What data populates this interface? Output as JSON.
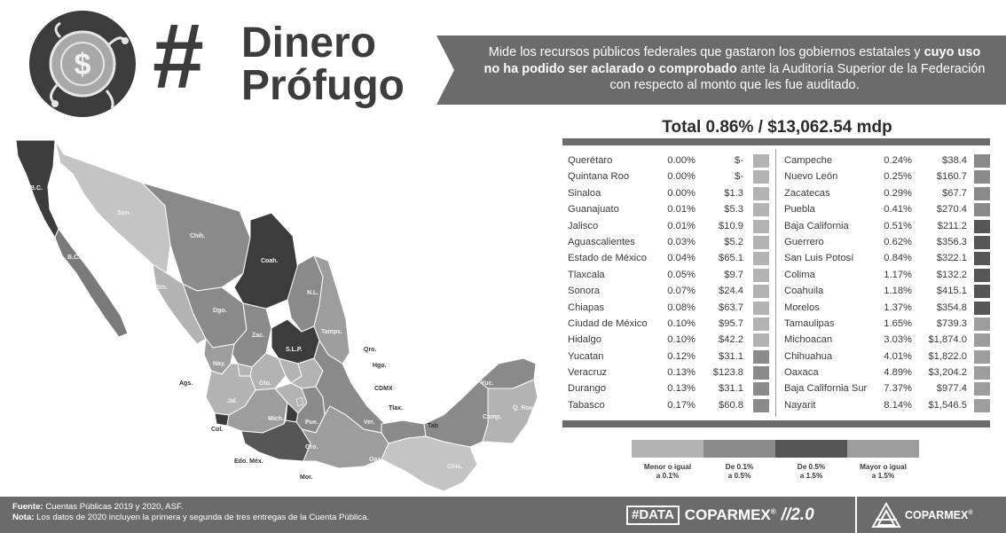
{
  "header": {
    "hashtag": "#",
    "title_line1": "Dinero",
    "title_line2": "Prófugo",
    "description_part1": "Mide los recursos públicos federales que gastaron los gobiernos estatales y ",
    "description_bold": "cuyo uso no ha podido ser aclarado o comprobado",
    "description_part2": " ante la Auditoría Superior de la Federación con respecto al monto que les fue auditado."
  },
  "total": {
    "text": "Total 0.86% /  $13,062.54 mdp"
  },
  "colors": {
    "dark": "#3c3c3c",
    "banner": "#6b6b6b",
    "tier1": "#b3b3b3",
    "tier2": "#8a8a8a",
    "tier3": "#565656",
    "tier4": "#9d9d9d"
  },
  "table": {
    "left": [
      {
        "state": "Querétaro",
        "pct": "0.00%",
        "amount": "$-",
        "tier": 1
      },
      {
        "state": "Quintana Roo",
        "pct": "0.00%",
        "amount": "$-",
        "tier": 1
      },
      {
        "state": "Sinaloa",
        "pct": "0.00%",
        "amount": "$1.3",
        "tier": 1
      },
      {
        "state": "Guanajuato",
        "pct": "0.01%",
        "amount": "$5.3",
        "tier": 1
      },
      {
        "state": "Jalisco",
        "pct": "0.01%",
        "amount": "$10.9",
        "tier": 1
      },
      {
        "state": "Aguascalientes",
        "pct": "0.03%",
        "amount": "$5.2",
        "tier": 1
      },
      {
        "state": "Estado de México",
        "pct": "0.04%",
        "amount": "$65.1",
        "tier": 1
      },
      {
        "state": "Tlaxcala",
        "pct": "0.05%",
        "amount": "$9.7",
        "tier": 1
      },
      {
        "state": "Sonora",
        "pct": "0.07%",
        "amount": "$24.4",
        "tier": 1
      },
      {
        "state": "Chiapas",
        "pct": "0.08%",
        "amount": "$63.7",
        "tier": 1
      },
      {
        "state": "Ciudad de México",
        "pct": "0.10%",
        "amount": "$95.7",
        "tier": 1
      },
      {
        "state": "Hidalgo",
        "pct": "0.10%",
        "amount": "$42.2",
        "tier": 1
      },
      {
        "state": "Yucatan",
        "pct": "0.12%",
        "amount": "$31.1",
        "tier": 2
      },
      {
        "state": "Veracruz",
        "pct": "0.13%",
        "amount": "$123.8",
        "tier": 2
      },
      {
        "state": "Durango",
        "pct": "0.13%",
        "amount": "$31.1",
        "tier": 2
      },
      {
        "state": "Tabasco",
        "pct": "0.17%",
        "amount": "$60.8",
        "tier": 2
      }
    ],
    "right": [
      {
        "state": "Campeche",
        "pct": "0.24%",
        "amount": "$38.4",
        "tier": 2
      },
      {
        "state": "Nuevo León",
        "pct": "0.25%",
        "amount": "$160.7",
        "tier": 2
      },
      {
        "state": "Zacatecas",
        "pct": "0.29%",
        "amount": "$67.7",
        "tier": 2
      },
      {
        "state": "Puebla",
        "pct": "0.41%",
        "amount": "$270.4",
        "tier": 2
      },
      {
        "state": "Baja California",
        "pct": "0.51%",
        "amount": "$211.2",
        "tier": 3
      },
      {
        "state": "Guerrero",
        "pct": "0.62%",
        "amount": "$356.3",
        "tier": 3
      },
      {
        "state": "San Luis Potosí",
        "pct": "0.84%",
        "amount": "$322.1",
        "tier": 3
      },
      {
        "state": "Colima",
        "pct": "1.17%",
        "amount": "$132.2",
        "tier": 3
      },
      {
        "state": "Coahuila",
        "pct": "1.18%",
        "amount": "$415.1",
        "tier": 3
      },
      {
        "state": "Morelos",
        "pct": "1.37%",
        "amount": "$354.8",
        "tier": 3
      },
      {
        "state": "Tamaulipas",
        "pct": "1.65%",
        "amount": "$739.3",
        "tier": 4
      },
      {
        "state": "Michoacan",
        "pct": "3.03%",
        "amount": "$1,874.0",
        "tier": 4
      },
      {
        "state": "Chihuahua",
        "pct": "4.01%",
        "amount": "$1,822.0",
        "tier": 4
      },
      {
        "state": "Oaxaca",
        "pct": "4.89%",
        "amount": "$3,204.2",
        "tier": 4
      },
      {
        "state": "Baja California Sur",
        "pct": "7.37%",
        "amount": "$977.4",
        "tier": 4
      },
      {
        "state": "Nayarit",
        "pct": "8.14%",
        "amount": "$1,546.5",
        "tier": 4
      }
    ]
  },
  "legend": [
    {
      "label_line1": "Menor o igual",
      "label_line2": "a 0.1%"
    },
    {
      "label_line1": "De 0.1%",
      "label_line2": "a 0.5%"
    },
    {
      "label_line1": "De 0.5%",
      "label_line2": "a 1.5%"
    },
    {
      "label_line1": "Mayor o igual",
      "label_line2": "a 1.5%"
    }
  ],
  "map_labels": {
    "bc": "B.C.",
    "bcs": "B.C.S.",
    "son": "Son.",
    "chih": "Chih.",
    "coah": "Coah.",
    "nl": "N.L.",
    "sin": "Sin.",
    "dgo": "Dgo.",
    "tamps": "Tamps.",
    "zac": "Zac.",
    "slp": "S.L.P.",
    "qro": "Qro.",
    "nay": "Nay.",
    "hgo": "Hgo.",
    "ags": "Ags.",
    "gto": "Gto.",
    "cdmx": "CDMX",
    "jal": "Jal.",
    "tlax": "Tlax.",
    "mich": "Mich.",
    "ver": "Ver.",
    "col": "Col.",
    "pue": "Pue.",
    "tab": "Tab",
    "yuc": "Yuc.",
    "qroo": "Q. Roo",
    "camp": "Camp.",
    "edo_mex": "Edo. Méx.",
    "mor": "Mor.",
    "gro": "Gro.",
    "oax": "Oax.",
    "chis": "Chis."
  },
  "footer": {
    "source_label": "Fuente:",
    "source_text": " Cuentas Públicas 2019 y 2020, ASF.",
    "note_label": "Nota:",
    "note_text": " Los datos de 2020 incluyen la primera y segunda de tres entregas de la Cuenta Pública.",
    "data_tag": "#DATA",
    "data_brand": "COPARMEX",
    "data_reg": "®",
    "data_version": "//2.0",
    "brand_name": "COPARMEX",
    "brand_reg": "®"
  }
}
